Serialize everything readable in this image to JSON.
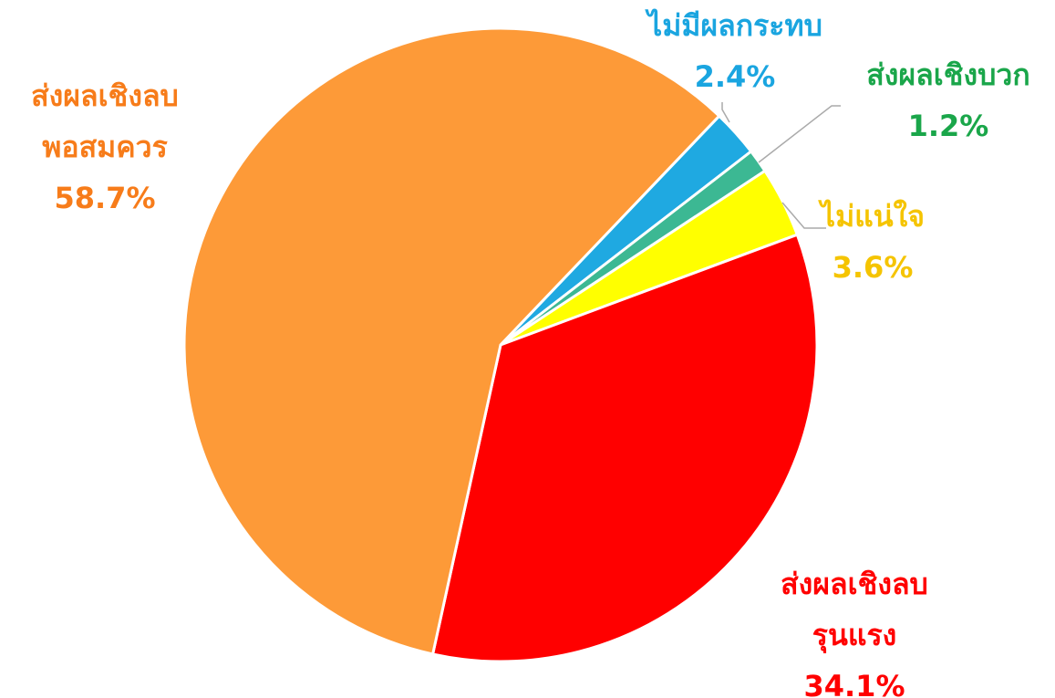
{
  "chart_data": {
    "type": "pie",
    "categories": [
      "ไม่มีผลกระทบ",
      "ส่งผลเชิงบวก",
      "ไม่แน่ใจ",
      "ส่งผลเชิงลบ\nรุนแรง",
      "ส่งผลเชิงลบ\nพอสมควร"
    ],
    "values": [
      2.4,
      1.2,
      3.6,
      34.1,
      58.7
    ],
    "value_labels": [
      "2.4%",
      "1.2%",
      "3.6%",
      "34.1%",
      "58.7%"
    ],
    "colors": [
      "#1fa9e1",
      "#3cb893",
      "#ffff00",
      "#ff0000",
      "#fd9a38"
    ],
    "label_colors": [
      "#1aa5e0",
      "#1aa64a",
      "#f5c400",
      "#ff0000",
      "#f77c1a"
    ]
  }
}
